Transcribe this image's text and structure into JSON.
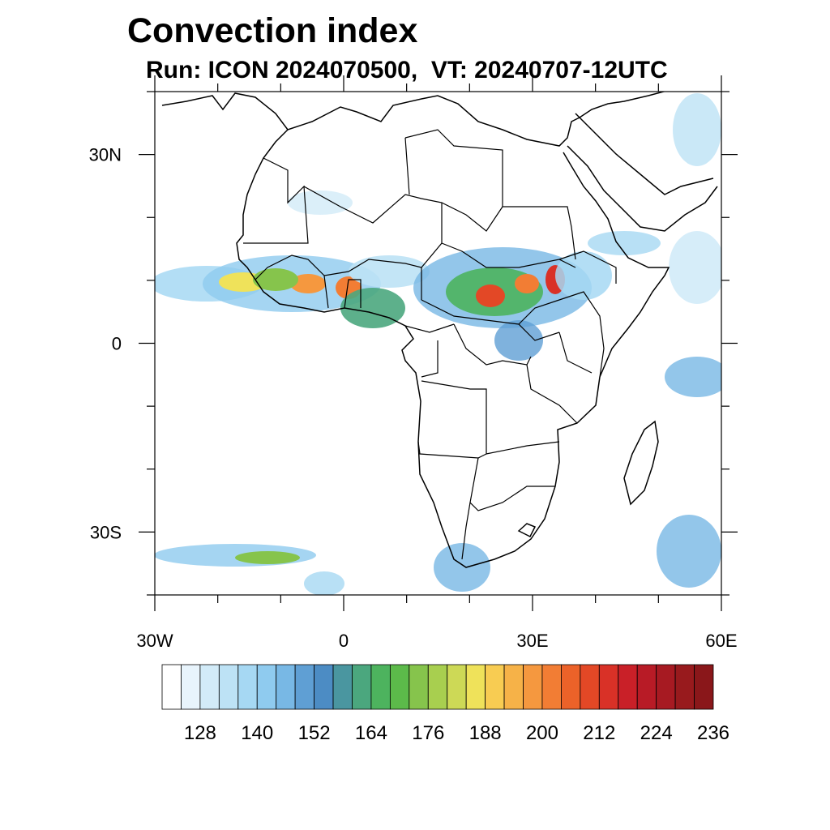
{
  "title": "Convection index",
  "subtitle": "Run: ICON 2024070500,  VT: 20240707-12UTC",
  "map": {
    "lon_range": [
      -30,
      60
    ],
    "lat_range": [
      -40,
      40
    ],
    "lon_ticks": [
      {
        "value": -30,
        "label": "30W"
      },
      {
        "value": 0,
        "label": "0"
      },
      {
        "value": 30,
        "label": "30E"
      },
      {
        "value": 60,
        "label": "60E"
      }
    ],
    "lat_ticks": [
      {
        "value": 30,
        "label": "30N"
      },
      {
        "value": 0,
        "label": "0"
      },
      {
        "value": -30,
        "label": "30S"
      }
    ]
  },
  "colorbar": {
    "colors": [
      "#ffffff",
      "#e8f4fc",
      "#d2ebf8",
      "#bde2f5",
      "#a6d8f3",
      "#8fcbef",
      "#78b8e5",
      "#5f9fd4",
      "#4c8cc4",
      "#4a96a0",
      "#4ba77e",
      "#4db35e",
      "#5cba4a",
      "#86c44c",
      "#a8cf4f",
      "#cdd956",
      "#efe25a",
      "#f8cc52",
      "#f6b248",
      "#f5983f",
      "#f27d34",
      "#ec6229",
      "#e34826",
      "#d93127",
      "#c92028",
      "#b81b26",
      "#a71a22",
      "#981a1d",
      "#8a171a"
    ],
    "labels": [
      "128",
      "140",
      "152",
      "164",
      "176",
      "188",
      "200",
      "212",
      "224",
      "236"
    ]
  }
}
